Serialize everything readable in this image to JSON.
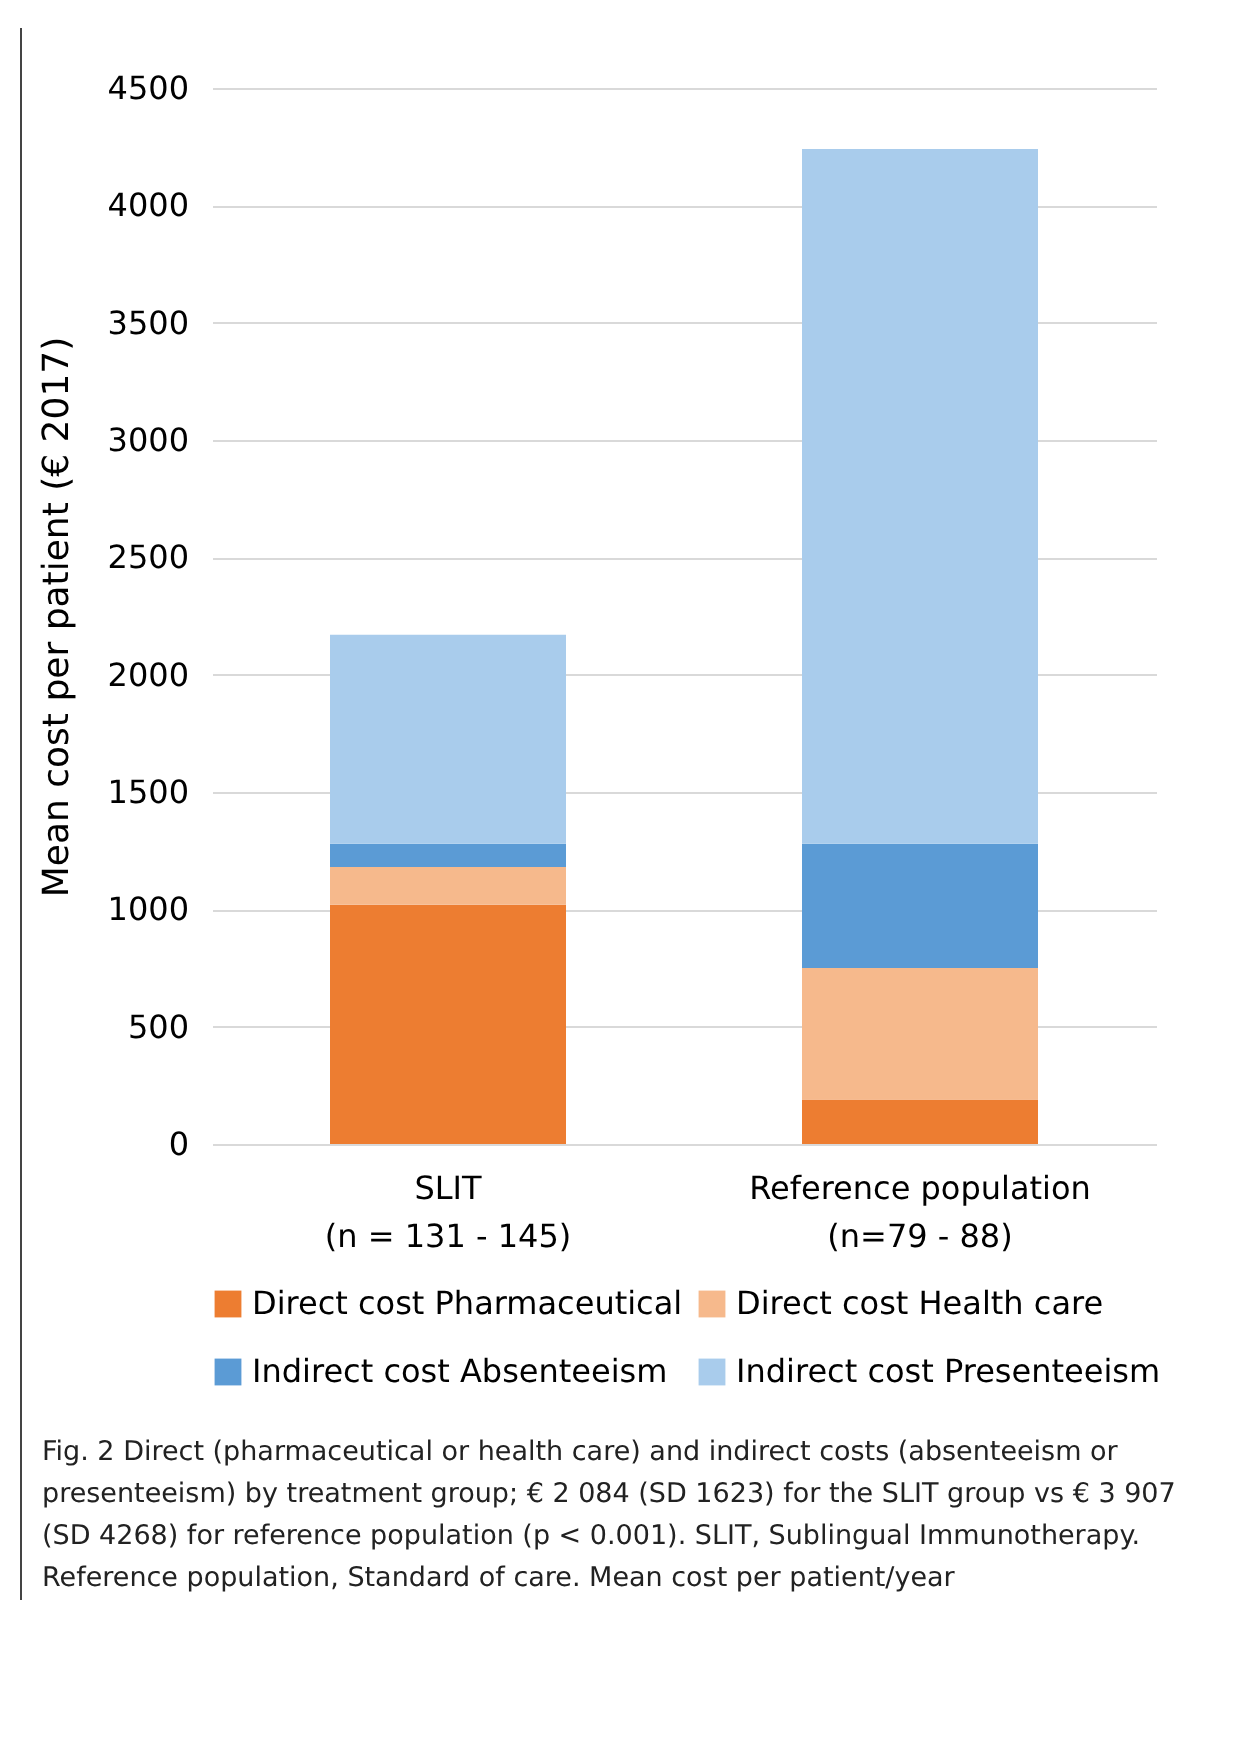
{
  "chart_data": {
    "type": "bar",
    "stacked": true,
    "categories": [
      "SLIT\n(n = 131 - 145)",
      "Reference population\n(n=79 - 88)"
    ],
    "ylabel": "Mean cost per patient (€ 2017)",
    "ylim": [
      0,
      4500
    ],
    "yticks": [
      0,
      500,
      1000,
      1500,
      2000,
      2500,
      3000,
      3500,
      4000,
      4500
    ],
    "grid": "y",
    "legend": "bottom",
    "series": [
      {
        "name": "Direct cost Pharmaceutical",
        "color": "#ed7d31",
        "values": [
          1020,
          190
        ]
      },
      {
        "name": "Direct cost Health care",
        "color": "#f6b98c",
        "values": [
          160,
          560
        ]
      },
      {
        "name": "Indirect cost Absenteeism",
        "color": "#5b9bd5",
        "values": [
          100,
          530
        ]
      },
      {
        "name": "Indirect cost Presenteeism",
        "color": "#a9ccec",
        "values": [
          890,
          2960
        ]
      }
    ],
    "annotations": [
      "Fig. 2  Direct (pharmaceutical or health care) and indirect costs (absenteeism or presenteeism) by treatment group; € 2 084 (SD 1623) for the SLIT group vs € 3 907 (SD 4268) for reference population (p < 0.001). SLIT, Sublingual Immunotherapy. Reference population, Standard of care. Mean cost per patient/year"
    ]
  }
}
